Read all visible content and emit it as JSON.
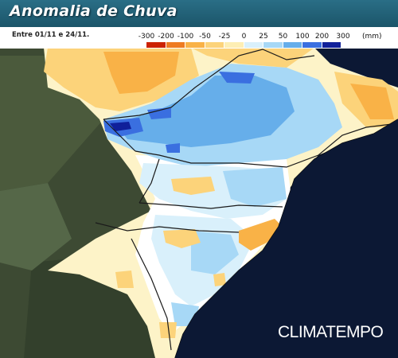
{
  "header": {
    "title": "Anomalia de Chuva"
  },
  "period": "Entre 01/11 e 24/11.",
  "legend": {
    "unit": "(mm)",
    "items": [
      {
        "label": "-300",
        "color": "#cc2200"
      },
      {
        "label": "-200",
        "color": "#ee7b22"
      },
      {
        "label": "-100",
        "color": "#f9b247"
      },
      {
        "label": "-50",
        "color": "#fcd37a"
      },
      {
        "label": "-25",
        "color": "#fdeeb4"
      },
      {
        "label": "0",
        "color": "#ffffff"
      },
      {
        "label": "25",
        "color": "#d9f0fb"
      },
      {
        "label": "50",
        "color": "#a7d8f6"
      },
      {
        "label": "100",
        "color": "#66aeea"
      },
      {
        "label": "200",
        "color": "#3a6fe0"
      },
      {
        "label": "300",
        "color": "#10209a"
      }
    ]
  },
  "brand": "CLIMATEMPO"
}
